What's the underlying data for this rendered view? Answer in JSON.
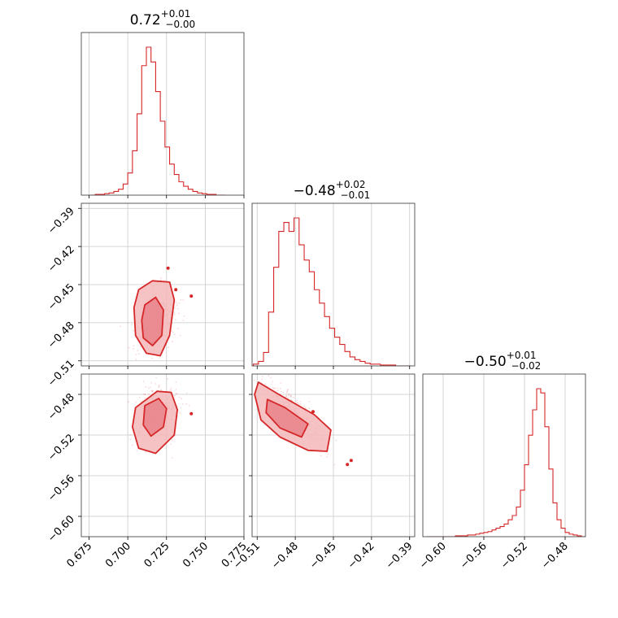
{
  "chart_data": [
    {
      "type": "histogram",
      "panel": "hist-p1",
      "title": "0.72",
      "title_sup": "+0.01",
      "title_sub": "−0.00",
      "xlim": [
        0.67,
        0.775
      ],
      "ticks": [
        0.675,
        0.7,
        0.725,
        0.75,
        0.775
      ],
      "tick_labels": [
        "0.675",
        "0.700",
        "0.725",
        "0.750",
        "0.775"
      ],
      "bin_starts": [
        0.676,
        0.679,
        0.682,
        0.685,
        0.688,
        0.691,
        0.694,
        0.697,
        0.7,
        0.703,
        0.706,
        0.709,
        0.712,
        0.715,
        0.718,
        0.721,
        0.724,
        0.727,
        0.73,
        0.733,
        0.736,
        0.739,
        0.742,
        0.745,
        0.748,
        0.751,
        0.754,
        0.757,
        0.76
      ],
      "bin_width": 0.003,
      "counts": [
        0,
        1,
        1,
        2,
        3,
        5,
        8,
        15,
        30,
        60,
        110,
        175,
        200,
        180,
        140,
        100,
        65,
        42,
        28,
        18,
        12,
        8,
        5,
        3,
        2,
        1,
        1,
        0,
        0
      ],
      "color": "#d62728"
    },
    {
      "type": "histogram",
      "panel": "hist-p2",
      "title": "−0.48",
      "title_sup": "+0.02",
      "title_sub": "−0.01",
      "xlim": [
        -0.514,
        -0.386
      ],
      "ticks": [
        -0.51,
        -0.48,
        -0.45,
        -0.42,
        -0.39
      ],
      "tick_labels": [
        "−0.51",
        "−0.48",
        "−0.45",
        "−0.42",
        "−0.39"
      ],
      "bin_starts": [
        -0.513,
        -0.509,
        -0.505,
        -0.501,
        -0.497,
        -0.493,
        -0.489,
        -0.485,
        -0.481,
        -0.477,
        -0.473,
        -0.469,
        -0.465,
        -0.461,
        -0.457,
        -0.453,
        -0.449,
        -0.445,
        -0.441,
        -0.437,
        -0.433,
        -0.429,
        -0.425,
        -0.421,
        -0.417,
        -0.413,
        -0.409,
        -0.405,
        -0.401,
        -0.397,
        -0.393
      ],
      "bin_width": 0.004,
      "counts": [
        2,
        5,
        15,
        60,
        110,
        150,
        160,
        150,
        165,
        135,
        118,
        105,
        85,
        70,
        55,
        42,
        32,
        24,
        16,
        10,
        7,
        5,
        3,
        2,
        2,
        1,
        1,
        1,
        0,
        0,
        0
      ],
      "color": "#d62728"
    },
    {
      "type": "histogram",
      "panel": "hist-p3",
      "title": "−0.50",
      "title_sup": "+0.01",
      "title_sub": "−0.02",
      "xlim": [
        -0.62,
        -0.46
      ],
      "ticks": [
        -0.6,
        -0.56,
        -0.52,
        -0.48
      ],
      "tick_labels": [
        "−0.60",
        "−0.56",
        "−0.52",
        "−0.48"
      ],
      "bin_starts": [
        -0.616,
        -0.612,
        -0.608,
        -0.604,
        -0.6,
        -0.596,
        -0.592,
        -0.588,
        -0.584,
        -0.58,
        -0.576,
        -0.572,
        -0.568,
        -0.564,
        -0.56,
        -0.556,
        -0.552,
        -0.548,
        -0.544,
        -0.54,
        -0.536,
        -0.532,
        -0.528,
        -0.524,
        -0.52,
        -0.516,
        -0.512,
        -0.508,
        -0.504,
        -0.5,
        -0.496,
        -0.492,
        -0.488,
        -0.484,
        -0.48,
        -0.476,
        -0.472,
        -0.468,
        -0.464
      ],
      "bin_width": 0.004,
      "counts": [
        0,
        0,
        0,
        0,
        0,
        0,
        0,
        1,
        1,
        1,
        2,
        2,
        3,
        4,
        5,
        6,
        8,
        10,
        12,
        15,
        20,
        25,
        35,
        55,
        85,
        120,
        150,
        175,
        170,
        130,
        80,
        40,
        20,
        10,
        5,
        3,
        2,
        1,
        0
      ],
      "color": "#d62728"
    },
    {
      "type": "scatter",
      "panel": "p1-vs-p2",
      "xlim": [
        0.67,
        0.775
      ],
      "ylim": [
        -0.514,
        -0.386
      ],
      "xticks": [
        0.675,
        0.7,
        0.725,
        0.75,
        0.775
      ],
      "yticks": [
        -0.39,
        -0.42,
        -0.45,
        -0.48,
        -0.51
      ],
      "ytick_labels": [
        "−0.39",
        "−0.42",
        "−0.45",
        "−0.48",
        "−0.51"
      ],
      "center": [
        0.718,
        -0.478
      ],
      "sigma": [
        0.0065,
        0.013
      ],
      "correlation": 0.3,
      "contour_levels": [
        "outer",
        "inner"
      ],
      "contours": [
        [
          [
            0.707,
            -0.454
          ],
          [
            0.716,
            -0.447
          ],
          [
            0.727,
            -0.448
          ],
          [
            0.73,
            -0.462
          ],
          [
            0.727,
            -0.49
          ],
          [
            0.721,
            -0.506
          ],
          [
            0.712,
            -0.504
          ],
          [
            0.705,
            -0.49
          ],
          [
            0.704,
            -0.468
          ]
        ],
        [
          [
            0.711,
            -0.466
          ],
          [
            0.718,
            -0.46
          ],
          [
            0.723,
            -0.47
          ],
          [
            0.722,
            -0.49
          ],
          [
            0.716,
            -0.498
          ],
          [
            0.71,
            -0.492
          ],
          [
            0.709,
            -0.478
          ]
        ]
      ],
      "outliers": [
        [
          0.726,
          -0.437
        ],
        [
          0.741,
          -0.459
        ],
        [
          0.731,
          -0.454
        ]
      ],
      "color": "#d62728"
    },
    {
      "type": "scatter",
      "panel": "p1-vs-p3",
      "xlim": [
        0.67,
        0.775
      ],
      "ylim": [
        -0.62,
        -0.46
      ],
      "xticks": [
        0.675,
        0.7,
        0.725,
        0.75,
        0.775
      ],
      "yticks": [
        -0.48,
        -0.52,
        -0.56,
        -0.6
      ],
      "ytick_labels": [
        "−0.48",
        "−0.52",
        "−0.56",
        "−0.60"
      ],
      "center": [
        0.719,
        -0.5
      ],
      "sigma": [
        0.0065,
        0.015
      ],
      "correlation": 0.2,
      "contour_levels": [
        "outer",
        "inner"
      ],
      "contours": [
        [
          [
            0.705,
            -0.493
          ],
          [
            0.719,
            -0.477
          ],
          [
            0.728,
            -0.478
          ],
          [
            0.732,
            -0.495
          ],
          [
            0.73,
            -0.52
          ],
          [
            0.718,
            -0.538
          ],
          [
            0.707,
            -0.533
          ],
          [
            0.703,
            -0.512
          ]
        ],
        [
          [
            0.711,
            -0.491
          ],
          [
            0.72,
            -0.484
          ],
          [
            0.725,
            -0.494
          ],
          [
            0.723,
            -0.512
          ],
          [
            0.715,
            -0.521
          ],
          [
            0.71,
            -0.51
          ]
        ]
      ],
      "outliers": [
        [
          0.741,
          -0.499
        ]
      ],
      "color": "#d62728"
    },
    {
      "type": "scatter",
      "panel": "p2-vs-p3",
      "xlim": [
        -0.514,
        -0.386
      ],
      "ylim": [
        -0.62,
        -0.46
      ],
      "xticks": [
        -0.51,
        -0.48,
        -0.45,
        -0.42,
        -0.39
      ],
      "yticks": [
        -0.48,
        -0.52,
        -0.56,
        -0.6
      ],
      "center": [
        -0.48,
        -0.5
      ],
      "sigma": [
        0.012,
        0.015
      ],
      "correlation": -0.85,
      "contour_levels": [
        "outer",
        "inner"
      ],
      "contours": [
        [
          [
            -0.509,
            -0.468
          ],
          [
            -0.493,
            -0.48
          ],
          [
            -0.465,
            -0.5
          ],
          [
            -0.452,
            -0.515
          ],
          [
            -0.455,
            -0.536
          ],
          [
            -0.47,
            -0.535
          ],
          [
            -0.492,
            -0.522
          ],
          [
            -0.507,
            -0.505
          ],
          [
            -0.512,
            -0.48
          ]
        ],
        [
          [
            -0.502,
            -0.485
          ],
          [
            -0.488,
            -0.493
          ],
          [
            -0.47,
            -0.509
          ],
          [
            -0.475,
            -0.522
          ],
          [
            -0.492,
            -0.513
          ],
          [
            -0.503,
            -0.498
          ]
        ]
      ],
      "outliers": [
        [
          -0.466,
          -0.497
        ],
        [
          -0.436,
          -0.545
        ],
        [
          -0.439,
          -0.549
        ]
      ],
      "color": "#d62728"
    }
  ]
}
